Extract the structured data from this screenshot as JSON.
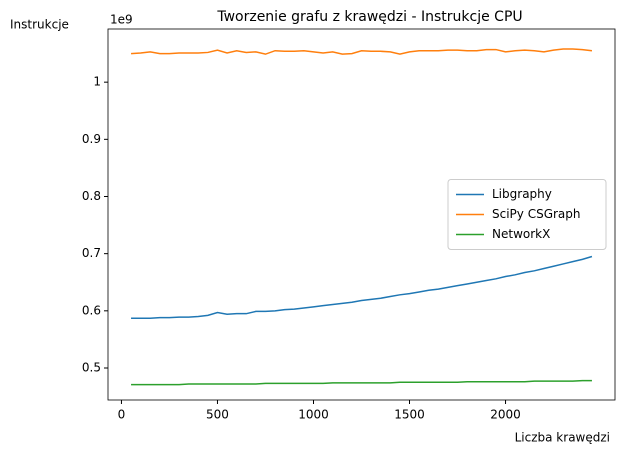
{
  "chart_data": {
    "type": "line",
    "title": "Tworzenie grafu z krawędzi - Instrukcje CPU",
    "x_label": "Liczba krawędzi",
    "y_label": "Instrukcje",
    "y_offset_label": "1e9",
    "x": [
      50,
      100,
      150,
      200,
      250,
      300,
      350,
      400,
      450,
      500,
      550,
      600,
      650,
      700,
      750,
      800,
      850,
      900,
      950,
      1000,
      1050,
      1100,
      1150,
      1200,
      1250,
      1300,
      1350,
      1400,
      1450,
      1500,
      1550,
      1600,
      1650,
      1700,
      1750,
      1800,
      1850,
      1900,
      1950,
      2000,
      2050,
      2100,
      2150,
      2200,
      2250,
      2300,
      2350,
      2400,
      2450
    ],
    "series": [
      {
        "name": "Libgraphy",
        "color": "#1f77b4",
        "values": [
          0.587,
          0.587,
          0.587,
          0.588,
          0.588,
          0.589,
          0.589,
          0.59,
          0.592,
          0.597,
          0.594,
          0.595,
          0.595,
          0.599,
          0.599,
          0.6,
          0.602,
          0.603,
          0.605,
          0.607,
          0.609,
          0.611,
          0.613,
          0.615,
          0.618,
          0.62,
          0.622,
          0.625,
          0.628,
          0.63,
          0.633,
          0.636,
          0.638,
          0.641,
          0.644,
          0.647,
          0.65,
          0.653,
          0.656,
          0.66,
          0.663,
          0.667,
          0.67,
          0.674,
          0.678,
          0.682,
          0.686,
          0.69,
          0.695
        ]
      },
      {
        "name": "SciPy CSGraph",
        "color": "#ff7f0e",
        "values": [
          1.05,
          1.051,
          1.053,
          1.05,
          1.05,
          1.051,
          1.051,
          1.051,
          1.052,
          1.056,
          1.051,
          1.055,
          1.052,
          1.053,
          1.049,
          1.055,
          1.054,
          1.054,
          1.055,
          1.053,
          1.051,
          1.053,
          1.049,
          1.05,
          1.055,
          1.054,
          1.054,
          1.053,
          1.049,
          1.053,
          1.055,
          1.055,
          1.055,
          1.056,
          1.056,
          1.055,
          1.055,
          1.057,
          1.057,
          1.053,
          1.055,
          1.056,
          1.055,
          1.053,
          1.056,
          1.058,
          1.058,
          1.057,
          1.055
        ]
      },
      {
        "name": "NetworkX",
        "color": "#2ca02c",
        "values": [
          0.471,
          0.471,
          0.471,
          0.471,
          0.471,
          0.471,
          0.472,
          0.472,
          0.472,
          0.472,
          0.472,
          0.472,
          0.472,
          0.472,
          0.473,
          0.473,
          0.473,
          0.473,
          0.473,
          0.473,
          0.473,
          0.474,
          0.474,
          0.474,
          0.474,
          0.474,
          0.474,
          0.474,
          0.475,
          0.475,
          0.475,
          0.475,
          0.475,
          0.475,
          0.475,
          0.476,
          0.476,
          0.476,
          0.476,
          0.476,
          0.476,
          0.476,
          0.477,
          0.477,
          0.477,
          0.477,
          0.477,
          0.478,
          0.478
        ]
      }
    ],
    "xlim": [
      -70,
      2570
    ],
    "xticks": [
      0,
      500,
      1000,
      1500,
      2000
    ],
    "ylim": [
      0.444,
      1.093
    ],
    "yticks": [
      0.5,
      0.6,
      0.7,
      0.8,
      0.9,
      1.0
    ],
    "legend": "center right",
    "grid": false
  }
}
